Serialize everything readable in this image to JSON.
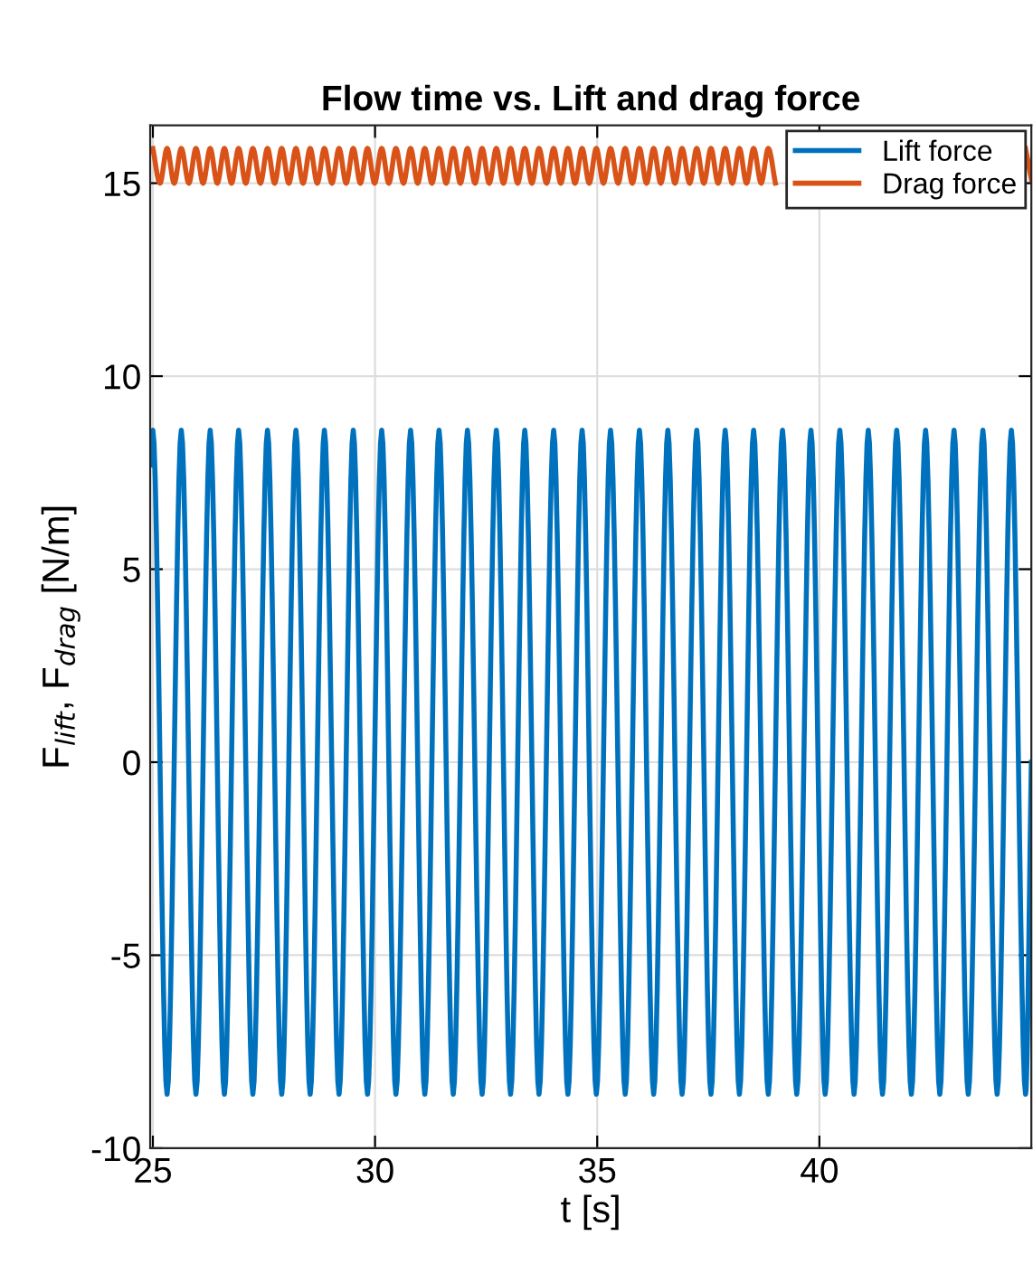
{
  "chart_data": {
    "type": "line",
    "title": "Flow time vs. Lift and drag force",
    "xlabel": "t [s]",
    "ylabel": "F$_{lift}$, F$_{drag}$ [N/m]",
    "xlim": [
      24.94,
      44.77
    ],
    "xticks": [
      25,
      30,
      35,
      40
    ],
    "ylim": [
      -10,
      16.5
    ],
    "yticks": [
      -10,
      -5,
      0,
      5,
      10,
      15
    ],
    "grid": true,
    "legend": "top right",
    "line_style": "solid",
    "marker": "none",
    "series": [
      {
        "name": "Lift force",
        "color": "#0072bd",
        "x": [
          24.94,
          25.0,
          25.32,
          25.64,
          25.97,
          26.29,
          26.61,
          26.93,
          27.25,
          27.58,
          27.9,
          28.22,
          28.54,
          28.86,
          29.19,
          29.51,
          29.83,
          30.15,
          30.47,
          30.8,
          31.12,
          31.44,
          31.76,
          32.08,
          32.41,
          32.73,
          33.05,
          33.37,
          33.69,
          34.02,
          34.34,
          34.66,
          34.98,
          35.3,
          35.63,
          35.95,
          36.27,
          36.59,
          36.91,
          37.24,
          37.56,
          37.88,
          38.2,
          38.52,
          38.85,
          39.17,
          39.49,
          39.81,
          40.13,
          40.46,
          40.78,
          41.1,
          41.42,
          41.74,
          42.07,
          42.39,
          42.71,
          43.03,
          43.35,
          43.68,
          44.0,
          44.32,
          44.64,
          44.77
        ],
        "values": [
          7.7,
          8.6,
          -8.6,
          8.6,
          -8.6,
          8.6,
          -8.6,
          8.6,
          -8.6,
          8.6,
          -8.6,
          8.6,
          -8.6,
          8.6,
          -8.6,
          8.6,
          -8.6,
          8.6,
          -8.6,
          8.6,
          -8.6,
          8.6,
          -8.6,
          8.6,
          -8.6,
          8.6,
          -8.6,
          8.6,
          -8.6,
          8.6,
          -8.6,
          8.6,
          -8.6,
          8.6,
          -8.6,
          8.6,
          -8.6,
          8.6,
          -8.6,
          8.6,
          -8.6,
          8.6,
          -8.6,
          8.6,
          -8.6,
          8.6,
          -8.6,
          8.6,
          -8.6,
          8.6,
          -8.6,
          8.6,
          -8.6,
          8.6,
          -8.6,
          8.6,
          -8.6,
          8.6,
          -8.6,
          8.6,
          -8.6,
          8.6,
          -8.6,
          0
        ]
      },
      {
        "name": "Drag force",
        "color": "#d95319",
        "x": [
          25.0,
          25.16,
          25.32,
          25.48,
          25.64,
          25.81,
          25.97,
          26.13,
          26.29,
          26.45,
          26.61,
          26.77,
          26.93,
          27.09,
          27.25,
          27.42,
          27.58,
          27.74,
          27.9,
          28.06,
          28.22,
          28.38,
          28.54,
          28.7,
          28.86,
          29.03,
          29.19,
          29.35,
          29.51,
          29.67,
          29.83,
          29.99,
          30.15,
          30.31,
          30.47,
          30.64,
          30.8,
          30.96,
          31.12,
          31.28,
          31.44,
          31.6,
          31.76,
          31.92,
          32.08,
          32.25,
          32.41,
          32.57,
          32.73,
          32.89,
          33.05,
          33.21,
          33.37,
          33.53,
          33.69,
          33.86,
          34.02,
          34.18,
          34.34,
          34.5,
          34.66,
          34.82,
          34.98,
          35.14,
          35.3,
          35.47,
          35.63,
          35.79,
          35.95,
          36.11,
          36.27,
          36.43,
          36.59,
          36.75,
          36.91,
          37.08,
          37.24,
          37.4,
          37.56,
          37.72,
          37.88,
          38.04,
          38.2,
          38.36,
          38.52,
          38.69,
          38.85,
          39.01,
          41.9,
          44.64,
          44.77
        ],
        "values": [
          15.9,
          15.0,
          15.9,
          15.0,
          15.9,
          15.0,
          15.9,
          15.0,
          15.9,
          15.0,
          15.9,
          15.0,
          15.9,
          15.0,
          15.9,
          15.0,
          15.9,
          15.0,
          15.9,
          15.0,
          15.9,
          15.0,
          15.9,
          15.0,
          15.9,
          15.0,
          15.9,
          15.0,
          15.9,
          15.0,
          15.9,
          15.0,
          15.9,
          15.0,
          15.9,
          15.0,
          15.9,
          15.0,
          15.9,
          15.0,
          15.9,
          15.0,
          15.9,
          15.0,
          15.9,
          15.0,
          15.9,
          15.0,
          15.9,
          15.0,
          15.9,
          15.0,
          15.9,
          15.0,
          15.9,
          15.0,
          15.9,
          15.0,
          15.9,
          15.0,
          15.9,
          15.0,
          15.9,
          15.0,
          15.9,
          15.0,
          15.9,
          15.0,
          15.9,
          15.0,
          15.9,
          15.0,
          15.9,
          15.0,
          15.9,
          15.0,
          15.9,
          15.0,
          15.9,
          15.0,
          15.9,
          15.0,
          15.9,
          15.0,
          15.9,
          15.0,
          15.9,
          15.0,
          null,
          15.9,
          15.1
        ]
      }
    ]
  }
}
